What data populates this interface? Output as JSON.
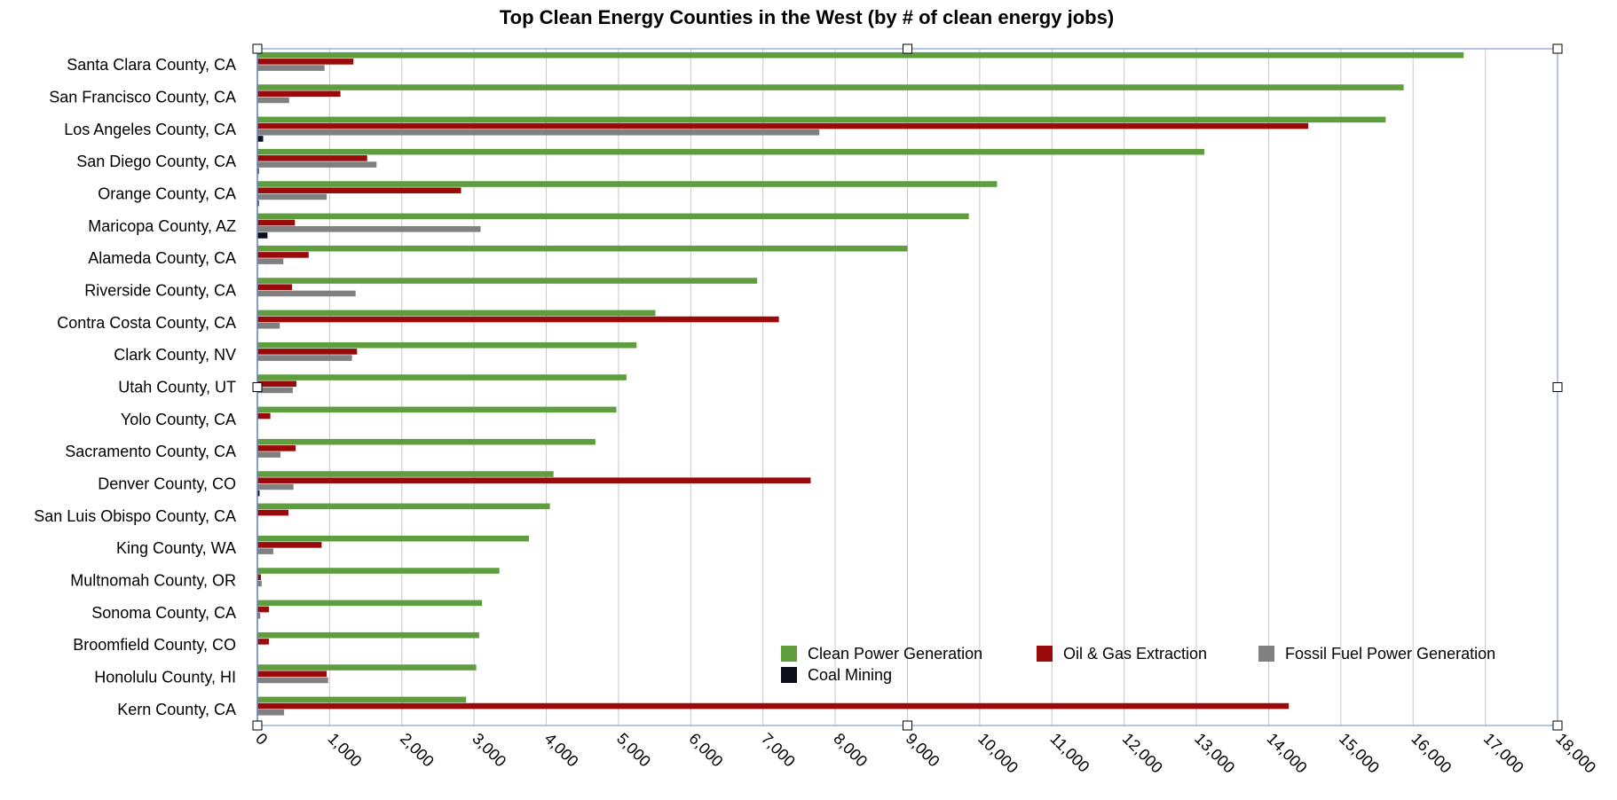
{
  "chart_data": {
    "type": "bar",
    "orientation": "horizontal",
    "title": "Top Clean Energy Counties in the West (by # of clean energy jobs)",
    "xlabel": "",
    "ylabel": "",
    "xlim": [
      0,
      18000
    ],
    "xticks": [
      0,
      1000,
      2000,
      3000,
      4000,
      5000,
      6000,
      7000,
      8000,
      9000,
      10000,
      11000,
      12000,
      13000,
      14000,
      15000,
      16000,
      17000,
      18000
    ],
    "xtick_labels": [
      "0",
      "1,000",
      "2,000",
      "3,000",
      "4,000",
      "5,000",
      "6,000",
      "7,000",
      "8,000",
      "9,000",
      "10,000",
      "11,000",
      "12,000",
      "13,000",
      "14,000",
      "15,000",
      "16,000",
      "17,000",
      "18,000"
    ],
    "grid": true,
    "legend_position": "bottom-right",
    "categories": [
      "Santa Clara County, CA",
      "San Francisco County, CA",
      "Los Angeles County, CA",
      "San Diego County, CA",
      "Orange County, CA",
      "Maricopa County, AZ",
      "Alameda County, CA",
      "Riverside County, CA",
      "Contra Costa County, CA",
      "Clark County, NV",
      "Utah County, UT",
      "Yolo County, CA",
      "Sacramento County, CA",
      "Denver County, CO",
      "San Luis Obispo County, CA",
      "King County, WA",
      "Multnomah County, OR",
      "Sonoma County, CA",
      "Broomfield County, CO",
      "Honolulu County, HI",
      "Kern County, CA"
    ],
    "series": [
      {
        "name": "Clean Power Generation",
        "color": "#5e9e3e",
        "values": [
          16700,
          15870,
          15620,
          13110,
          10240,
          9850,
          9000,
          6920,
          5510,
          5250,
          5110,
          4970,
          4680,
          4100,
          4050,
          3760,
          3350,
          3110,
          3070,
          3030,
          2890
        ]
      },
      {
        "name": "Oil & Gas Extraction",
        "color": "#9b0a0a",
        "values": [
          1330,
          1150,
          14550,
          1520,
          2820,
          520,
          710,
          480,
          7220,
          1380,
          540,
          180,
          530,
          7660,
          430,
          890,
          50,
          160,
          160,
          960,
          14280
        ]
      },
      {
        "name": "Fossil Fuel Power Generation",
        "color": "#808080",
        "values": [
          930,
          440,
          7780,
          1650,
          960,
          3090,
          360,
          1360,
          310,
          1310,
          490,
          0,
          320,
          500,
          0,
          220,
          60,
          40,
          0,
          980,
          370
        ]
      },
      {
        "name": "Coal Mining",
        "color": "#0b0f1a",
        "values": [
          0,
          0,
          80,
          20,
          20,
          140,
          0,
          0,
          0,
          0,
          0,
          0,
          0,
          30,
          0,
          0,
          0,
          0,
          0,
          0,
          0
        ]
      }
    ]
  }
}
